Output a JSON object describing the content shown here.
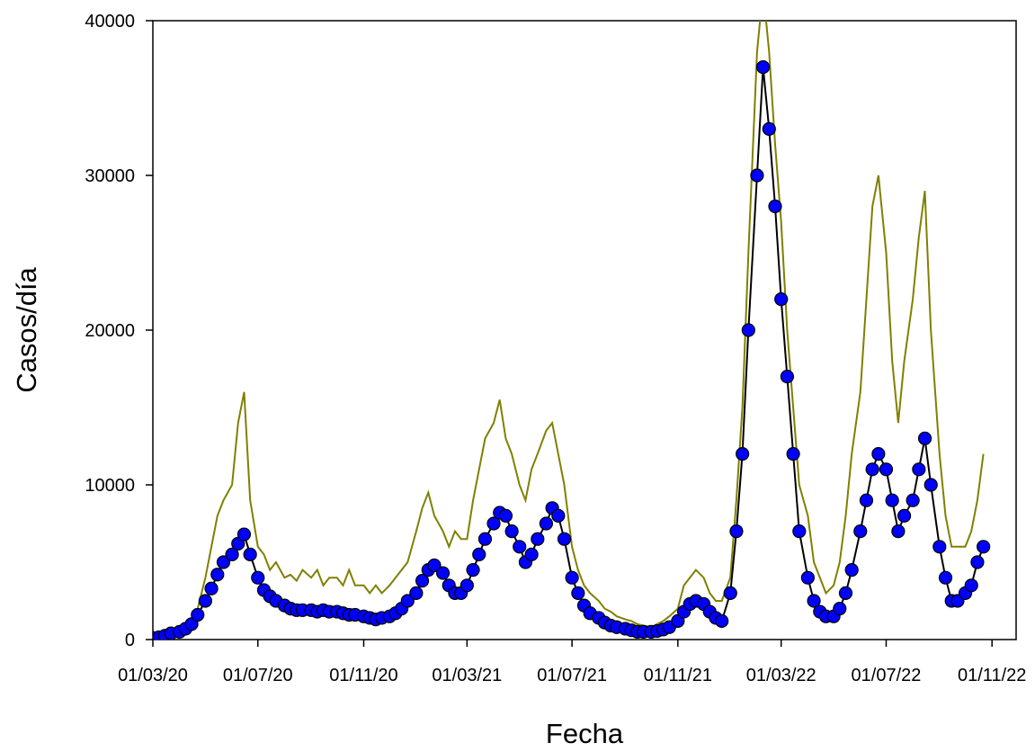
{
  "chart_data": {
    "type": "line",
    "xlabel": "Fecha",
    "ylabel": "Casos/día",
    "xlim": [
      "01/03/20",
      "29/11/22"
    ],
    "xticks": [
      "01/03/20",
      "01/07/20",
      "01/11/20",
      "01/03/21",
      "01/07/21",
      "01/11/21",
      "01/03/22",
      "01/07/22",
      "01/11/22"
    ],
    "ylim": [
      0,
      40000
    ],
    "yticks": [
      0,
      10000,
      20000,
      30000,
      40000
    ],
    "x": [
      "01/03/20",
      "08/03/20",
      "15/03/20",
      "22/03/20",
      "01/04/20",
      "08/04/20",
      "15/04/20",
      "22/04/20",
      "01/05/20",
      "08/05/20",
      "15/05/20",
      "22/05/20",
      "01/06/20",
      "08/06/20",
      "15/06/20",
      "22/06/20",
      "01/07/20",
      "08/07/20",
      "15/07/20",
      "22/07/20",
      "01/08/20",
      "08/08/20",
      "15/08/20",
      "22/08/20",
      "01/09/20",
      "08/09/20",
      "15/09/20",
      "22/09/20",
      "01/10/20",
      "08/10/20",
      "15/10/20",
      "22/10/20",
      "01/11/20",
      "08/11/20",
      "15/11/20",
      "22/11/20",
      "01/12/20",
      "08/12/20",
      "15/12/20",
      "22/12/20",
      "01/01/21",
      "08/01/21",
      "15/01/21",
      "22/01/21",
      "01/02/21",
      "08/02/21",
      "15/02/21",
      "22/02/21",
      "01/03/21",
      "08/03/21",
      "15/03/21",
      "22/03/21",
      "01/04/21",
      "08/04/21",
      "15/04/21",
      "22/04/21",
      "01/05/21",
      "08/05/21",
      "15/05/21",
      "22/05/21",
      "01/06/21",
      "08/06/21",
      "15/06/21",
      "22/06/21",
      "01/07/21",
      "08/07/21",
      "15/07/21",
      "22/07/21",
      "01/08/21",
      "08/08/21",
      "15/08/21",
      "22/08/21",
      "01/09/21",
      "08/09/21",
      "15/09/21",
      "22/09/21",
      "01/10/21",
      "08/10/21",
      "15/10/21",
      "22/10/21",
      "01/11/21",
      "08/11/21",
      "15/11/21",
      "22/11/21",
      "01/12/21",
      "08/12/21",
      "15/12/21",
      "22/12/21",
      "01/01/22",
      "08/01/22",
      "15/01/22",
      "22/01/22",
      "01/02/22",
      "08/02/22",
      "15/02/22",
      "22/02/22",
      "01/03/22",
      "08/03/22",
      "15/03/22",
      "22/03/22",
      "01/04/22",
      "08/04/22",
      "15/04/22",
      "22/04/22",
      "01/05/22",
      "08/05/22",
      "15/05/22",
      "22/05/22",
      "01/06/22",
      "08/06/22",
      "15/06/22",
      "22/06/22",
      "01/07/22",
      "08/07/22",
      "15/07/22",
      "22/07/22",
      "01/08/22",
      "08/08/22",
      "15/08/22",
      "22/08/22",
      "01/09/22",
      "08/09/22",
      "15/09/22",
      "22/09/22",
      "01/10/22",
      "08/10/22",
      "15/10/22",
      "22/10/22"
    ],
    "series": [
      {
        "color": "#808000",
        "values": [
          0,
          100,
          200,
          400,
          500,
          800,
          1200,
          2000,
          4000,
          6000,
          8000,
          9000,
          10000,
          14000,
          16000,
          9000,
          6000,
          5500,
          4500,
          5000,
          4000,
          4200,
          3800,
          4500,
          4000,
          4500,
          3500,
          4000,
          4000,
          3500,
          4500,
          3500,
          3500,
          3000,
          3500,
          3000,
          3500,
          4000,
          4500,
          5000,
          7000,
          8500,
          9500,
          8000,
          7000,
          6000,
          7000,
          6500,
          6500,
          9000,
          11000,
          13000,
          14000,
          15500,
          13000,
          12000,
          10000,
          9000,
          11000,
          12000,
          13500,
          14000,
          12000,
          10000,
          6000,
          4500,
          3500,
          3000,
          2500,
          2000,
          1800,
          1500,
          1300,
          1200,
          1000,
          900,
          800,
          1000,
          1200,
          1500,
          2000,
          3500,
          4000,
          4500,
          4000,
          3000,
          2500,
          2500,
          4000,
          9000,
          15000,
          25000,
          38000,
          42000,
          38000,
          32000,
          27000,
          20000,
          15000,
          10000,
          8000,
          5000,
          4000,
          3000,
          3500,
          5000,
          8000,
          12000,
          16000,
          22000,
          28000,
          30000,
          25000,
          18000,
          14000,
          18000,
          22000,
          26000,
          29000,
          20000,
          12000,
          8000,
          6000,
          6000,
          6000,
          7000,
          9000,
          12000
        ]
      },
      {
        "color": "#0000ff",
        "line_color": "#000000",
        "marker": "circle",
        "values": [
          100,
          150,
          250,
          400,
          500,
          700,
          1000,
          1600,
          2500,
          3300,
          4200,
          5000,
          5500,
          6200,
          6800,
          5500,
          4000,
          3200,
          2800,
          2500,
          2200,
          2000,
          1900,
          1900,
          1900,
          1800,
          1900,
          1800,
          1800,
          1700,
          1600,
          1600,
          1500,
          1400,
          1300,
          1400,
          1500,
          1700,
          2000,
          2500,
          3000,
          3800,
          4500,
          4800,
          4300,
          3500,
          3000,
          3000,
          3500,
          4500,
          5500,
          6500,
          7500,
          8200,
          8000,
          7000,
          6000,
          5000,
          5500,
          6500,
          7500,
          8500,
          8000,
          6500,
          4000,
          3000,
          2200,
          1700,
          1400,
          1100,
          900,
          800,
          700,
          600,
          500,
          500,
          500,
          550,
          650,
          800,
          1200,
          1800,
          2300,
          2500,
          2300,
          1800,
          1400,
          1200,
          3000,
          7000,
          12000,
          20000,
          30000,
          37000,
          33000,
          28000,
          22000,
          17000,
          12000,
          7000,
          4000,
          2500,
          1800,
          1500,
          1500,
          2000,
          3000,
          4500,
          7000,
          9000,
          11000,
          12000,
          11000,
          9000,
          7000,
          8000,
          9000,
          11000,
          13000,
          10000,
          6000,
          4000,
          2500,
          2500,
          3000,
          3500,
          5000,
          6000
        ]
      }
    ]
  }
}
